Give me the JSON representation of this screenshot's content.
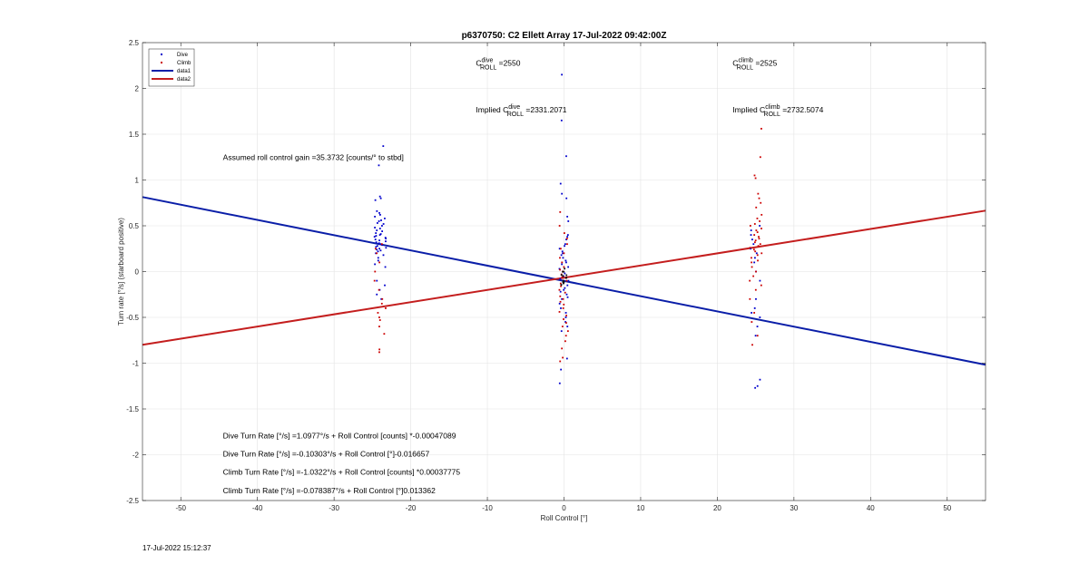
{
  "chart_data": {
    "type": "scatter",
    "title": "p6370750: C2 Ellett Array 17-Jul-2022 09:42:00Z",
    "xlabel": "Roll Control [°]",
    "ylabel": "Turn rate [°/s] (starboard positive)",
    "xlim": [
      -55,
      55
    ],
    "ylim": [
      -2.5,
      2.5
    ],
    "xticks": [
      -50,
      -40,
      -30,
      -20,
      -10,
      0,
      10,
      20,
      30,
      40,
      50
    ],
    "yticks": [
      -2.5,
      -2,
      -1.5,
      -1,
      -0.5,
      0,
      0.5,
      1,
      1.5,
      2,
      2.5
    ],
    "grid": true,
    "legend_position": "top-left",
    "legend": [
      "Dive",
      "Climb",
      "data1",
      "data2"
    ],
    "colors": {
      "dive": "#0000cc",
      "climb": "#cc0000",
      "data1": "#0a1ea8",
      "data2": "#c41e1e",
      "grid": "#e3e3e3",
      "zero": "#000000"
    },
    "lines": [
      {
        "name": "data1",
        "x": [
          -55,
          55
        ],
        "y": [
          0.8136,
          -1.0174
        ]
      },
      {
        "name": "data2",
        "x": [
          -55,
          55
        ],
        "y": [
          -0.7998,
          0.6651
        ]
      }
    ],
    "scatter_clusters": [
      {
        "series": "Dive",
        "x_center": -24.0,
        "x_spread": 0.8,
        "y_values": [
          0.82,
          0.8,
          0.78,
          0.66,
          0.64,
          0.62,
          0.6,
          0.58,
          0.56,
          0.55,
          0.53,
          0.52,
          0.5,
          0.48,
          0.47,
          0.45,
          0.44,
          0.42,
          0.41,
          0.4,
          0.39,
          0.38,
          0.37,
          0.36,
          0.35,
          0.34,
          0.33,
          0.32,
          0.31,
          0.3,
          0.29,
          0.28,
          0.27,
          0.26,
          0.25,
          0.24,
          0.23,
          0.22,
          0.2,
          0.18,
          0.15,
          0.12,
          0.08,
          0.05,
          -0.1,
          -0.15,
          -0.2,
          -0.25,
          -0.3,
          1.16,
          1.37
        ]
      },
      {
        "series": "Climb",
        "x_center": -24.0,
        "x_spread": 0.8,
        "y_values": [
          0.3,
          0.25,
          0.2,
          0.1,
          0.0,
          -0.1,
          -0.2,
          -0.3,
          -0.35,
          -0.4,
          -0.45,
          -0.5,
          -0.53,
          -0.6,
          -0.68,
          -0.85,
          -0.88
        ]
      },
      {
        "series": "Dive",
        "x_center": 0.0,
        "x_spread": 0.6,
        "y_values": [
          2.15,
          1.65,
          1.26,
          0.96,
          0.85,
          0.8,
          0.6,
          0.55,
          0.4,
          0.38,
          0.35,
          0.3,
          0.28,
          0.25,
          0.22,
          0.2,
          0.18,
          0.15,
          0.12,
          0.1,
          0.08,
          0.05,
          0.03,
          0.0,
          -0.02,
          -0.05,
          -0.08,
          -0.1,
          -0.12,
          -0.15,
          -0.18,
          -0.2,
          -0.22,
          -0.25,
          -0.28,
          -0.3,
          -0.35,
          -0.4,
          -0.45,
          -0.5,
          -0.55,
          -0.6,
          -0.65,
          -0.95,
          -1.07,
          -1.22
        ]
      },
      {
        "series": "Climb",
        "x_center": 0.0,
        "x_spread": 0.6,
        "y_values": [
          0.65,
          0.5,
          0.42,
          0.36,
          0.3,
          0.25,
          0.2,
          0.15,
          0.1,
          0.05,
          0.02,
          0.0,
          -0.03,
          -0.06,
          -0.1,
          -0.13,
          -0.16,
          -0.2,
          -0.23,
          -0.27,
          -0.3,
          -0.33,
          -0.36,
          -0.4,
          -0.44,
          -0.48,
          -0.52,
          -0.56,
          -0.6,
          -0.65,
          -0.7,
          -0.76,
          -0.84,
          -0.94,
          -0.98
        ]
      },
      {
        "series": "Dive",
        "x_center": 25.0,
        "x_spread": 0.7,
        "y_values": [
          0.5,
          0.45,
          0.4,
          0.35,
          0.3,
          0.25,
          0.2,
          0.15,
          0.1,
          0.0,
          -0.1,
          -0.3,
          -0.4,
          -0.45,
          -0.5,
          -0.6,
          -0.7,
          -1.18,
          -1.25,
          -1.27
        ]
      },
      {
        "series": "Climb",
        "x_center": 25.0,
        "x_spread": 0.8,
        "y_values": [
          1.56,
          1.25,
          1.05,
          1.02,
          0.85,
          0.8,
          0.75,
          0.7,
          0.62,
          0.58,
          0.55,
          0.52,
          0.5,
          0.47,
          0.45,
          0.43,
          0.4,
          0.38,
          0.36,
          0.34,
          0.32,
          0.3,
          0.28,
          0.26,
          0.24,
          0.22,
          0.2,
          0.18,
          0.15,
          0.12,
          0.1,
          0.05,
          0.0,
          -0.05,
          -0.1,
          -0.15,
          -0.2,
          -0.3,
          -0.45,
          -0.55,
          -0.7,
          -0.8
        ]
      }
    ],
    "annotations": [
      {
        "x": -11.5,
        "y": 2.25,
        "main": "C",
        "sup": "dive",
        "sub": "ROLL",
        "tail": " =2550"
      },
      {
        "x": 22.0,
        "y": 2.25,
        "main": "C",
        "sup": "climb",
        "sub": "ROLL",
        "tail": " =2525"
      },
      {
        "x": -11.5,
        "y": 1.74,
        "main": "Implied C",
        "sup": "dive",
        "sub": "ROLL",
        "tail": " =2331.2071"
      },
      {
        "x": 22.0,
        "y": 1.74,
        "main": "Implied C",
        "sup": "climb",
        "sub": "ROLL",
        "tail": " =2732.5074"
      },
      {
        "x": -44.5,
        "y": 1.22,
        "text": "Assumed roll control gain =35.3732 [counts/° to stbd]"
      },
      {
        "x": -44.5,
        "y": -1.82,
        "text": "Dive Turn Rate [°/s] =1.0977°/s + Roll Control [counts] *-0.00047089"
      },
      {
        "x": -44.5,
        "y": -2.02,
        "text": "Dive Turn Rate [°/s] =-0.10303°/s + Roll Control [°]-0.016657"
      },
      {
        "x": -44.5,
        "y": -2.22,
        "text": "Climb Turn Rate [°/s] =-1.0322°/s + Roll Control [counts] *0.00037775"
      },
      {
        "x": -44.5,
        "y": -2.42,
        "text": "Climb Turn Rate [°/s] =-0.078387°/s + Roll Control [°]0.013362"
      }
    ]
  },
  "footer": {
    "timestamp": "17-Jul-2022 15:12:37"
  }
}
